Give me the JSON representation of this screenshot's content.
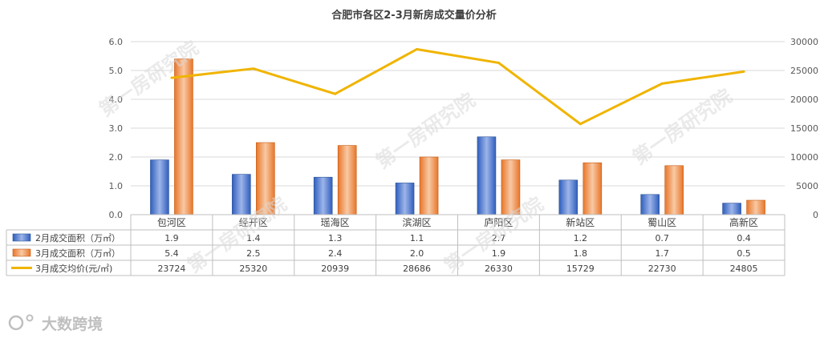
{
  "chart_data": {
    "type": "bar",
    "title": "合肥市各区2-3月新房成交量价分析",
    "categories": [
      "包河区",
      "经开区",
      "瑶海区",
      "滨湖区",
      "庐阳区",
      "新站区",
      "蜀山区",
      "高新区"
    ],
    "series": [
      {
        "name": "2月成交面积（万㎡）",
        "type": "bar",
        "axis": "left",
        "values": [
          1.9,
          1.4,
          1.3,
          1.1,
          2.7,
          1.2,
          0.7,
          0.4
        ],
        "color": "#4472c4"
      },
      {
        "name": "3月成交面积（万㎡）",
        "type": "bar",
        "axis": "left",
        "values": [
          5.4,
          2.5,
          2.4,
          2.0,
          1.9,
          1.8,
          1.7,
          0.5
        ],
        "color": "#ed7d31"
      },
      {
        "name": "3月成交均价(元/㎡)",
        "type": "line",
        "axis": "right",
        "values": [
          23724,
          25320,
          20939,
          28686,
          26330,
          15729,
          22730,
          24805
        ],
        "color": "#f0b400"
      }
    ],
    "y_left": {
      "ylim": [
        0,
        6
      ],
      "ticks": [
        "0.0",
        "1.0",
        "2.0",
        "3.0",
        "4.0",
        "5.0",
        "6.0"
      ]
    },
    "y_right": {
      "ylim": [
        0,
        30000
      ],
      "ticks": [
        "0",
        "5000",
        "10000",
        "15000",
        "20000",
        "25000",
        "30000"
      ]
    },
    "data_table": {
      "rows": [
        [
          "1.9",
          "1.4",
          "1.3",
          "1.1",
          "2.7",
          "1.2",
          "0.7",
          "0.4"
        ],
        [
          "5.4",
          "2.5",
          "2.4",
          "2.0",
          "1.9",
          "1.8",
          "1.7",
          "0.5"
        ],
        [
          "23724",
          "25320",
          "20939",
          "28686",
          "26330",
          "15729",
          "22730",
          "24805"
        ]
      ]
    },
    "grid": true
  },
  "watermark": "第一房研究院",
  "logo_text": "大数跨境"
}
